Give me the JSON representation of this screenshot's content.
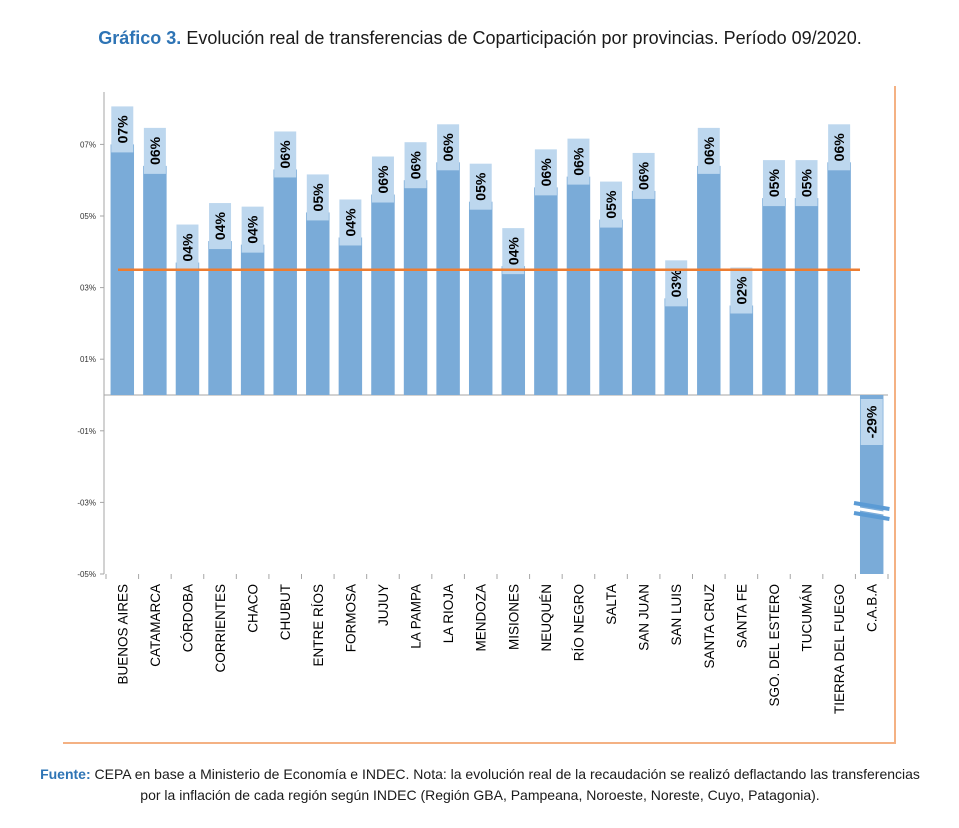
{
  "title": {
    "lead": "Gráfico 3.",
    "text": "Evolución real de transferencias de Coparticipación por provincias. Período 09/2020."
  },
  "source": {
    "lead": "Fuente:",
    "text": "CEPA en base a Ministerio de Economía e INDEC. Nota: la evolución real de la recaudación se realizó deflactando las transferencias por la inflación de cada región según INDEC (Región GBA, Pampeana, Noroeste, Noreste, Cuyo, Patagonia)."
  },
  "colors": {
    "bar": "#7aabd8",
    "label_bg": "#bdd7ee",
    "reference_line": "#ed7d31",
    "frame": "#f4b183"
  },
  "chart_data": {
    "type": "bar",
    "categories": [
      "BUENOS AIRES",
      "CATAMARCA",
      "CÓRDOBA",
      "CORRIENTES",
      "CHACO",
      "CHUBUT",
      "ENTRE RÍOS",
      "FORMOSA",
      "JUJUY",
      "LA PAMPA",
      "LA RIOJA",
      "MENDOZA",
      "MISIONES",
      "NEUQUÉN",
      "RÍO NEGRO",
      "SALTA",
      "SAN JUAN",
      "SAN LUIS",
      "SANTA CRUZ",
      "SANTA FE",
      "SGO. DEL ESTERO",
      "TUCUMÁN",
      "TIERRA DEL FUEGO",
      "C.A.B.A"
    ],
    "values": [
      7.0,
      6.4,
      3.7,
      4.3,
      4.2,
      6.3,
      5.1,
      4.4,
      5.6,
      6.0,
      6.5,
      5.4,
      3.6,
      5.8,
      6.1,
      4.9,
      5.7,
      2.7,
      6.4,
      2.5,
      5.5,
      5.5,
      6.5,
      -29
    ],
    "data_labels": [
      "07%",
      "06%",
      "04%",
      "04%",
      "04%",
      "06%",
      "05%",
      "04%",
      "06%",
      "06%",
      "06%",
      "05%",
      "04%",
      "06%",
      "06%",
      "05%",
      "06%",
      "03%",
      "06%",
      "02%",
      "05%",
      "05%",
      "06%",
      "-29%"
    ],
    "y_ticks": [
      -5,
      -3,
      -1,
      1,
      3,
      5,
      7
    ],
    "y_tick_labels": [
      "-05%",
      "-03%",
      "-01%",
      "01%",
      "03%",
      "05%",
      "07%"
    ],
    "ylim": [
      -5,
      8
    ],
    "truncated_categories": [
      "C.A.B.A"
    ],
    "reference_line": 3.5,
    "grid": false,
    "legend": "none"
  }
}
